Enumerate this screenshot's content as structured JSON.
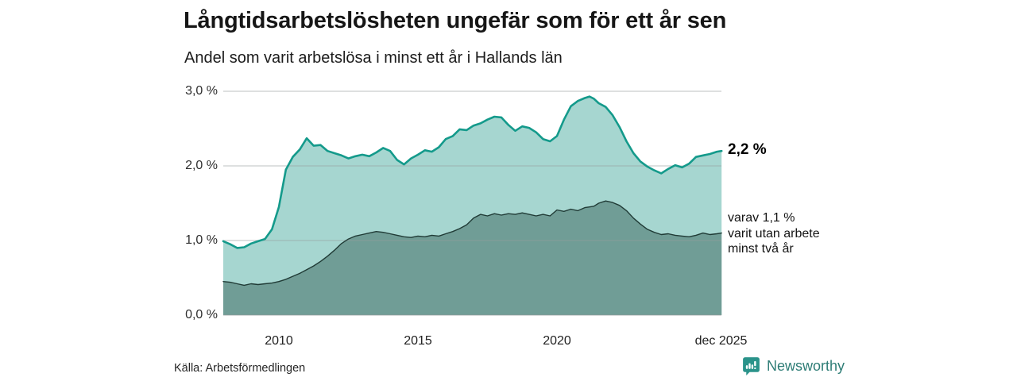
{
  "title": "Långtidsarbetslösheten ungefär som för ett år sen",
  "subtitle": "Andel som varit arbetslösa i minst ett år i Hallands län",
  "source": "Källa: Arbetsförmedlingen",
  "branding": {
    "name": "Newsworthy",
    "icon": "newsworthy-bubble-barchart-icon",
    "icon_color": "#2a938a",
    "text_color": "#2e7d76"
  },
  "annotations": {
    "latest_total_label": "2,2 %",
    "subseries_note": "varav 1,1 %\nvarit utan arbete\nminst två år"
  },
  "chart_data": {
    "type": "area",
    "title": "Långtidsarbetslösheten ungefär som för ett år sen",
    "subtitle": "Andel som varit arbetslösa i minst ett år i Hallands län",
    "xlabel": "",
    "ylabel": "",
    "x_range": [
      2008,
      2025.92
    ],
    "ylim": [
      0,
      3.15
    ],
    "grid": true,
    "legend": "none",
    "gridline_color": "rgba(150,158,156,0.5)",
    "y_axis": {
      "ticks": [
        {
          "label": "0,0 %",
          "value": 0
        },
        {
          "label": "1,0 %",
          "value": 1
        },
        {
          "label": "2,0 %",
          "value": 2
        },
        {
          "label": "3,0 %",
          "value": 3
        }
      ]
    },
    "x_axis": {
      "ticks": [
        {
          "label": "2010",
          "year": 2010
        },
        {
          "label": "2015",
          "year": 2015
        },
        {
          "label": "2020",
          "year": 2020
        },
        {
          "label": "dec 2025",
          "year": 2025.9
        }
      ]
    },
    "x": [
      2008,
      2008.25,
      2008.5,
      2008.75,
      2009,
      2009.25,
      2009.5,
      2009.75,
      2010,
      2010.25,
      2010.5,
      2010.75,
      2011,
      2011.25,
      2011.5,
      2011.75,
      2012,
      2012.25,
      2012.5,
      2012.75,
      2013,
      2013.25,
      2013.5,
      2013.75,
      2014,
      2014.25,
      2014.5,
      2014.75,
      2015,
      2015.25,
      2015.5,
      2015.75,
      2016,
      2016.25,
      2016.5,
      2016.75,
      2017,
      2017.25,
      2017.5,
      2017.75,
      2018,
      2018.25,
      2018.5,
      2018.75,
      2019,
      2019.25,
      2019.5,
      2019.75,
      2020,
      2020.25,
      2020.5,
      2020.75,
      2021,
      2021.17,
      2021.33,
      2021.5,
      2021.75,
      2022,
      2022.25,
      2022.5,
      2022.75,
      2023,
      2023.25,
      2023.5,
      2023.75,
      2024,
      2024.25,
      2024.5,
      2024.75,
      2025,
      2025.25,
      2025.5,
      2025.75,
      2025.92
    ],
    "series": [
      {
        "name": "Andel arbetslösa minst ett år",
        "latest_value": 2.2,
        "line_color": "#149a8b",
        "fill_color": "#a6d6d0",
        "line_width": 2.6,
        "values": [
          0.99,
          0.95,
          0.9,
          0.91,
          0.96,
          0.99,
          1.02,
          1.15,
          1.45,
          1.95,
          2.12,
          2.22,
          2.37,
          2.27,
          2.28,
          2.2,
          2.17,
          2.14,
          2.1,
          2.13,
          2.15,
          2.13,
          2.18,
          2.24,
          2.2,
          2.08,
          2.02,
          2.1,
          2.15,
          2.21,
          2.19,
          2.25,
          2.36,
          2.4,
          2.49,
          2.48,
          2.54,
          2.57,
          2.62,
          2.66,
          2.65,
          2.55,
          2.47,
          2.53,
          2.51,
          2.45,
          2.36,
          2.33,
          2.4,
          2.62,
          2.8,
          2.87,
          2.91,
          2.93,
          2.9,
          2.84,
          2.79,
          2.68,
          2.52,
          2.33,
          2.17,
          2.06,
          1.99,
          1.94,
          1.9,
          1.96,
          2.01,
          1.98,
          2.03,
          2.12,
          2.14,
          2.16,
          2.19,
          2.2
        ]
      },
      {
        "name": "varav utan arbete minst två år",
        "latest_value": 1.1,
        "line_color": "#203b36",
        "fill_color": "#709d96",
        "line_width": 1.4,
        "values": [
          0.45,
          0.44,
          0.42,
          0.4,
          0.42,
          0.41,
          0.42,
          0.43,
          0.45,
          0.48,
          0.52,
          0.56,
          0.61,
          0.66,
          0.72,
          0.79,
          0.87,
          0.96,
          1.02,
          1.06,
          1.08,
          1.1,
          1.12,
          1.11,
          1.09,
          1.07,
          1.05,
          1.04,
          1.06,
          1.05,
          1.07,
          1.06,
          1.09,
          1.12,
          1.16,
          1.21,
          1.3,
          1.35,
          1.33,
          1.36,
          1.34,
          1.36,
          1.35,
          1.37,
          1.35,
          1.33,
          1.35,
          1.33,
          1.41,
          1.39,
          1.42,
          1.4,
          1.44,
          1.45,
          1.46,
          1.5,
          1.53,
          1.51,
          1.47,
          1.4,
          1.3,
          1.22,
          1.15,
          1.11,
          1.08,
          1.09,
          1.07,
          1.06,
          1.05,
          1.07,
          1.1,
          1.08,
          1.09,
          1.1
        ]
      }
    ]
  }
}
